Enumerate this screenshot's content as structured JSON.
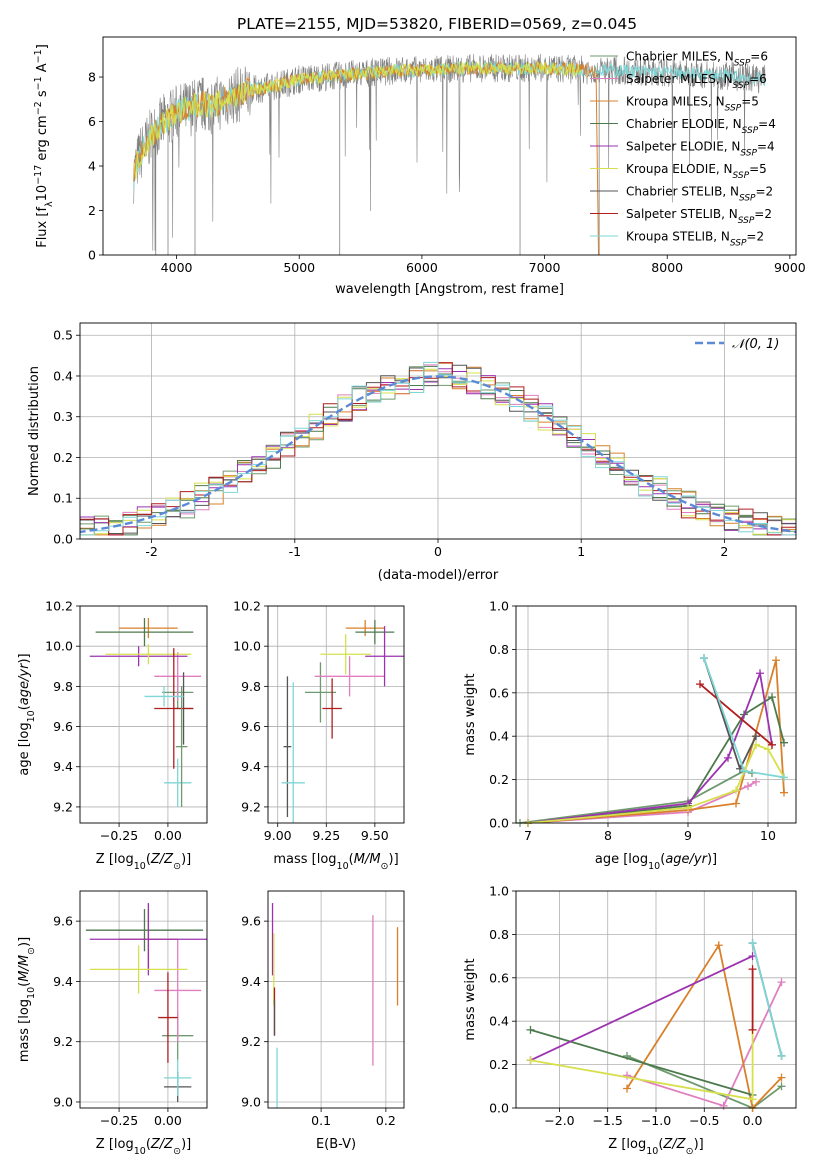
{
  "figure_title": "PLATE=2155, MJD=53820, FIBERID=0569, z=0.045",
  "model_colors": [
    "#6f9a6f",
    "#e07fbf",
    "#d9802a",
    "#4d7a4d",
    "#9b32b0",
    "#d6e04c",
    "#555555",
    "#b01d1d",
    "#7fd6d6"
  ],
  "chart_data": [
    {
      "id": "spectrum",
      "type": "line",
      "xlabel": "wavelength [Angstrom, rest frame]",
      "ylabel": "Flux [f_λ10^-17 erg cm^-2 s^-1 A^-1]",
      "xlim": [
        3400,
        9050
      ],
      "ylim": [
        0,
        9.8
      ],
      "xticks": [
        4000,
        5000,
        6000,
        7000,
        8000,
        9000
      ],
      "yticks": [
        0,
        2,
        4,
        6,
        8
      ],
      "grid": false,
      "legend_position": "right",
      "data_x": [
        3650,
        3700,
        3800,
        3900,
        4000,
        4100,
        4200,
        4300,
        4400,
        4500,
        4600,
        4800,
        5000,
        5200,
        5400,
        5600,
        5800,
        6000,
        6200,
        6400,
        6600,
        6800,
        7000,
        7200,
        7400,
        7600,
        7800,
        8000,
        8200,
        8400,
        8600,
        8800
      ],
      "data_y": [
        3.6,
        4.5,
        5.4,
        6.0,
        6.4,
        6.6,
        6.8,
        6.7,
        7.0,
        7.2,
        7.4,
        7.6,
        7.9,
        8.0,
        8.1,
        8.2,
        8.3,
        8.3,
        8.35,
        8.4,
        8.4,
        8.4,
        8.4,
        8.35,
        8.3,
        8.3,
        8.25,
        8.2,
        8.15,
        8.1,
        8.0,
        7.9
      ],
      "legend": [
        {
          "pre": "Chabrier MILES, N",
          "sub": "SSP",
          "post": "=6"
        },
        {
          "pre": "Salpeter MILES, N",
          "sub": "SSP",
          "post": "=6"
        },
        {
          "pre": "Kroupa MILES, N",
          "sub": "SSP",
          "post": "=5"
        },
        {
          "pre": "Chabrier ELODIE, N",
          "sub": "SSP",
          "post": "=4"
        },
        {
          "pre": "Salpeter ELODIE, N",
          "sub": "SSP",
          "post": "=4"
        },
        {
          "pre": "Kroupa ELODIE, N",
          "sub": "SSP",
          "post": "=5"
        },
        {
          "pre": "Chabrier STELIB, N",
          "sub": "SSP",
          "post": "=2"
        },
        {
          "pre": "Salpeter STELIB, N",
          "sub": "SSP",
          "post": "=2"
        },
        {
          "pre": "Kroupa STELIB, N",
          "sub": "SSP",
          "post": "=2"
        }
      ]
    },
    {
      "id": "residuals",
      "type": "line",
      "xlabel": "(data-model)/error",
      "ylabel": "Normed distribution",
      "xlim": [
        -2.5,
        2.5
      ],
      "ylim": [
        0,
        0.53
      ],
      "xticks": [
        -2,
        -1,
        0,
        1,
        2
      ],
      "yticks": [
        0.0,
        0.1,
        0.2,
        0.3,
        0.4,
        0.5
      ],
      "grid": true,
      "legend_label": "𝒩(0, 1)",
      "legend_position": "top-right"
    },
    {
      "id": "age_vs_Z",
      "type": "scatter",
      "xlabel": "Z [log10(Z/Z⊙)]",
      "ylabel": "age  [log10(age/yr)]",
      "xlim": [
        -0.45,
        0.2
      ],
      "ylim": [
        9.12,
        10.2
      ],
      "xticks": [
        -0.25,
        0.0
      ],
      "xtick_labels": [
        "−0.25",
        "0.00"
      ],
      "yticks": [
        9.2,
        9.4,
        9.6,
        9.8,
        10.0,
        10.2
      ],
      "grid": true,
      "points": [
        {
          "x": 0.05,
          "y": 9.77,
          "xe": 0.08,
          "ye": 0.08,
          "c": 0
        },
        {
          "x": 0.05,
          "y": 9.85,
          "xe": 0.12,
          "ye": 0.12,
          "c": 1
        },
        {
          "x": -0.1,
          "y": 10.09,
          "xe": 0.15,
          "ye": 0.05,
          "c": 2
        },
        {
          "x": -0.12,
          "y": 10.07,
          "xe": 0.25,
          "ye": 0.07,
          "c": 3
        },
        {
          "x": -0.15,
          "y": 9.95,
          "xe": 0.25,
          "ye": 0.05,
          "c": 4
        },
        {
          "x": -0.1,
          "y": 9.96,
          "xe": 0.22,
          "ye": 0.05,
          "c": 5
        },
        {
          "x": 0.08,
          "y": 9.69,
          "xe": 0.05,
          "ye": 0.18,
          "c": 6
        },
        {
          "x": 0.03,
          "y": 9.69,
          "xe": 0.1,
          "ye": 0.3,
          "c": 7
        },
        {
          "x": 0.05,
          "y": 9.32,
          "xe": 0.07,
          "ye": 0.12,
          "c": 8
        },
        {
          "x": 0.07,
          "y": 9.5,
          "xe": 0.03,
          "ye": 0.3,
          "c": 0
        },
        {
          "x": -0.02,
          "y": 9.75,
          "xe": 0.1,
          "ye": 0.05,
          "c": 8
        }
      ]
    },
    {
      "id": "age_vs_mass",
      "type": "scatter",
      "xlabel": "mass [log10(M/M⊙)]",
      "ylabel": "",
      "xlim": [
        8.95,
        9.65
      ],
      "ylim": [
        9.12,
        10.2
      ],
      "xticks": [
        9.0,
        9.25,
        9.5
      ],
      "xtick_labels": [
        "9.00",
        "9.25",
        "9.50"
      ],
      "yticks": [
        9.2,
        9.4,
        9.6,
        9.8,
        10.0,
        10.2
      ],
      "grid": true,
      "points": [
        {
          "x": 9.22,
          "y": 9.77,
          "xe": 0.08,
          "ye": 0.15,
          "c": 0
        },
        {
          "x": 9.37,
          "y": 9.85,
          "xe": 0.18,
          "ye": 0.1,
          "c": 1
        },
        {
          "x": 9.45,
          "y": 10.09,
          "xe": 0.1,
          "ye": 0.04,
          "c": 2
        },
        {
          "x": 9.5,
          "y": 10.07,
          "xe": 0.1,
          "ye": 0.06,
          "c": 3
        },
        {
          "x": 9.55,
          "y": 9.95,
          "xe": 0.1,
          "ye": 0.15,
          "c": 4
        },
        {
          "x": 9.35,
          "y": 9.96,
          "xe": 0.13,
          "ye": 0.1,
          "c": 5
        },
        {
          "x": 9.05,
          "y": 9.5,
          "xe": 0.02,
          "ye": 0.35,
          "c": 6
        },
        {
          "x": 9.28,
          "y": 9.69,
          "xe": 0.05,
          "ye": 0.15,
          "c": 7
        },
        {
          "x": 9.08,
          "y": 9.32,
          "xe": 0.06,
          "ye": 0.5,
          "c": 8
        }
      ]
    },
    {
      "id": "mass_weight_vs_age",
      "type": "line",
      "xlabel": "age  [log10(age/yr)]",
      "ylabel": "mass weight",
      "xlim": [
        6.85,
        10.35
      ],
      "ylim": [
        0,
        1.0
      ],
      "xticks": [
        7,
        8,
        9,
        10
      ],
      "yticks": [
        0.0,
        0.2,
        0.4,
        0.6,
        0.8,
        1.0
      ],
      "grid": true,
      "series": [
        {
          "c": 0,
          "x": [
            6.9,
            9.0,
            9.7,
            9.8
          ],
          "y": [
            0.0,
            0.1,
            0.24,
            0.23
          ]
        },
        {
          "c": 1,
          "x": [
            7.0,
            9.0,
            9.75,
            9.85
          ],
          "y": [
            0.0,
            0.05,
            0.17,
            0.19
          ]
        },
        {
          "c": 2,
          "x": [
            7.0,
            9.0,
            9.6,
            10.1,
            10.2
          ],
          "y": [
            0.0,
            0.06,
            0.09,
            0.75,
            0.14
          ]
        },
        {
          "c": 3,
          "x": [
            7.0,
            9.0,
            9.7,
            10.05,
            10.2
          ],
          "y": [
            0.0,
            0.08,
            0.5,
            0.58,
            0.37
          ]
        },
        {
          "c": 4,
          "x": [
            7.0,
            9.0,
            9.5,
            9.9,
            10.05
          ],
          "y": [
            0.0,
            0.09,
            0.3,
            0.69,
            0.36
          ]
        },
        {
          "c": 5,
          "x": [
            7.0,
            9.0,
            9.6,
            9.85,
            10.0,
            10.2
          ],
          "y": [
            0.0,
            0.07,
            0.15,
            0.36,
            0.34,
            0.21
          ]
        },
        {
          "c": 6,
          "x": [
            9.2,
            9.65,
            9.85
          ],
          "y": [
            0.76,
            0.25,
            0.4
          ]
        },
        {
          "c": 7,
          "x": [
            9.15,
            10.05
          ],
          "y": [
            0.64,
            0.36
          ]
        },
        {
          "c": 8,
          "x": [
            9.2,
            9.7,
            10.2
          ],
          "y": [
            0.76,
            0.24,
            0.21
          ]
        }
      ]
    },
    {
      "id": "mass_vs_Z",
      "type": "scatter",
      "xlabel": "Z [log10(Z/Z⊙)]",
      "ylabel": "mass [log10(M/M⊙)]",
      "xlim": [
        -0.45,
        0.2
      ],
      "ylim": [
        8.98,
        9.7
      ],
      "xticks": [
        -0.25,
        0.0
      ],
      "xtick_labels": [
        "−0.25",
        "0.00"
      ],
      "yticks": [
        9.0,
        9.2,
        9.4,
        9.6
      ],
      "grid": true,
      "points": [
        {
          "x": 0.05,
          "y": 9.22,
          "xe": 0.08,
          "ye": 0.08,
          "c": 0
        },
        {
          "x": 0.05,
          "y": 9.37,
          "xe": 0.12,
          "ye": 0.17,
          "c": 1
        },
        {
          "x": -0.1,
          "y": 9.54,
          "xe": 0.15,
          "ye": 0.1,
          "c": 2
        },
        {
          "x": -0.12,
          "y": 9.57,
          "xe": 0.3,
          "ye": 0.07,
          "c": 3
        },
        {
          "x": -0.1,
          "y": 9.54,
          "xe": 0.3,
          "ye": 0.12,
          "c": 4
        },
        {
          "x": -0.15,
          "y": 9.44,
          "xe": 0.25,
          "ye": 0.08,
          "c": 5
        },
        {
          "x": 0.05,
          "y": 9.05,
          "xe": 0.07,
          "ye": 0.05,
          "c": 6
        },
        {
          "x": 0.0,
          "y": 9.28,
          "xe": 0.05,
          "ye": 0.15,
          "c": 7
        },
        {
          "x": 0.05,
          "y": 9.08,
          "xe": 0.07,
          "ye": 0.06,
          "c": 8
        }
      ]
    },
    {
      "id": "mass_vs_ebv",
      "type": "scatter",
      "xlabel": "E(B-V)",
      "ylabel": "",
      "xlim": [
        0.018,
        0.228
      ],
      "ylim": [
        8.98,
        9.7
      ],
      "xticks": [
        0.1,
        0.2
      ],
      "xtick_labels": [
        "0.1",
        "0.2"
      ],
      "yticks": [
        9.0,
        9.2,
        9.4,
        9.6
      ],
      "grid": true,
      "points": [
        {
          "x": 0.18,
          "y": 9.37,
          "xe": 0.0,
          "ye": 0.25,
          "c": 1
        },
        {
          "x": 0.218,
          "y": 9.45,
          "xe": 0.0,
          "ye": 0.13,
          "c": 2
        },
        {
          "x": 0.025,
          "y": 9.54,
          "xe": 0.0,
          "ye": 0.12,
          "c": 4
        },
        {
          "x": 0.027,
          "y": 9.44,
          "xe": 0.0,
          "ye": 0.12,
          "c": 5
        },
        {
          "x": 0.028,
          "y": 9.3,
          "xe": 0.0,
          "ye": 0.08,
          "c": 7
        },
        {
          "x": 0.032,
          "y": 9.08,
          "xe": 0.0,
          "ye": 0.1,
          "c": 8
        },
        {
          "x": 0.028,
          "y": 9.28,
          "xe": 0.0,
          "ye": 0.06,
          "c": 6
        }
      ]
    },
    {
      "id": "mass_weight_vs_Z",
      "type": "line",
      "xlabel": "Z [log10(Z/Z⊙)]",
      "ylabel": "mass weight",
      "xlim": [
        -2.45,
        0.45
      ],
      "ylim": [
        0,
        1.0
      ],
      "xticks": [
        -2.0,
        -1.5,
        -1.0,
        -0.5,
        0.0
      ],
      "xtick_labels": [
        "−2.0",
        "−1.5",
        "−1.0",
        "−0.5",
        "0.0"
      ],
      "yticks": [
        0.0,
        0.2,
        0.4,
        0.6,
        0.8,
        1.0
      ],
      "grid": true,
      "series": [
        {
          "c": 0,
          "x": [
            -1.3,
            0.0,
            0.3
          ],
          "y": [
            0.24,
            0.0,
            0.1
          ]
        },
        {
          "c": 1,
          "x": [
            -1.3,
            -0.3,
            0.3
          ],
          "y": [
            0.15,
            0.01,
            0.58
          ]
        },
        {
          "c": 2,
          "x": [
            -1.3,
            -0.35,
            0.0,
            0.3
          ],
          "y": [
            0.09,
            0.75,
            0.0,
            0.14
          ]
        },
        {
          "c": 3,
          "x": [
            -2.3,
            0.0
          ],
          "y": [
            0.36,
            0.06
          ]
        },
        {
          "c": 4,
          "x": [
            -2.3,
            0.0
          ],
          "y": [
            0.22,
            0.7
          ]
        },
        {
          "c": 5,
          "x": [
            -2.3,
            0.0,
            0.0
          ],
          "y": [
            0.22,
            0.04,
            0.36
          ]
        },
        {
          "c": 6,
          "x": [
            0.0,
            0.3
          ],
          "y": [
            0.76,
            0.24
          ]
        },
        {
          "c": 7,
          "x": [
            0.0,
            0.0
          ],
          "y": [
            0.64,
            0.36
          ]
        },
        {
          "c": 8,
          "x": [
            0.0,
            0.3
          ],
          "y": [
            0.76,
            0.24
          ]
        }
      ]
    }
  ]
}
